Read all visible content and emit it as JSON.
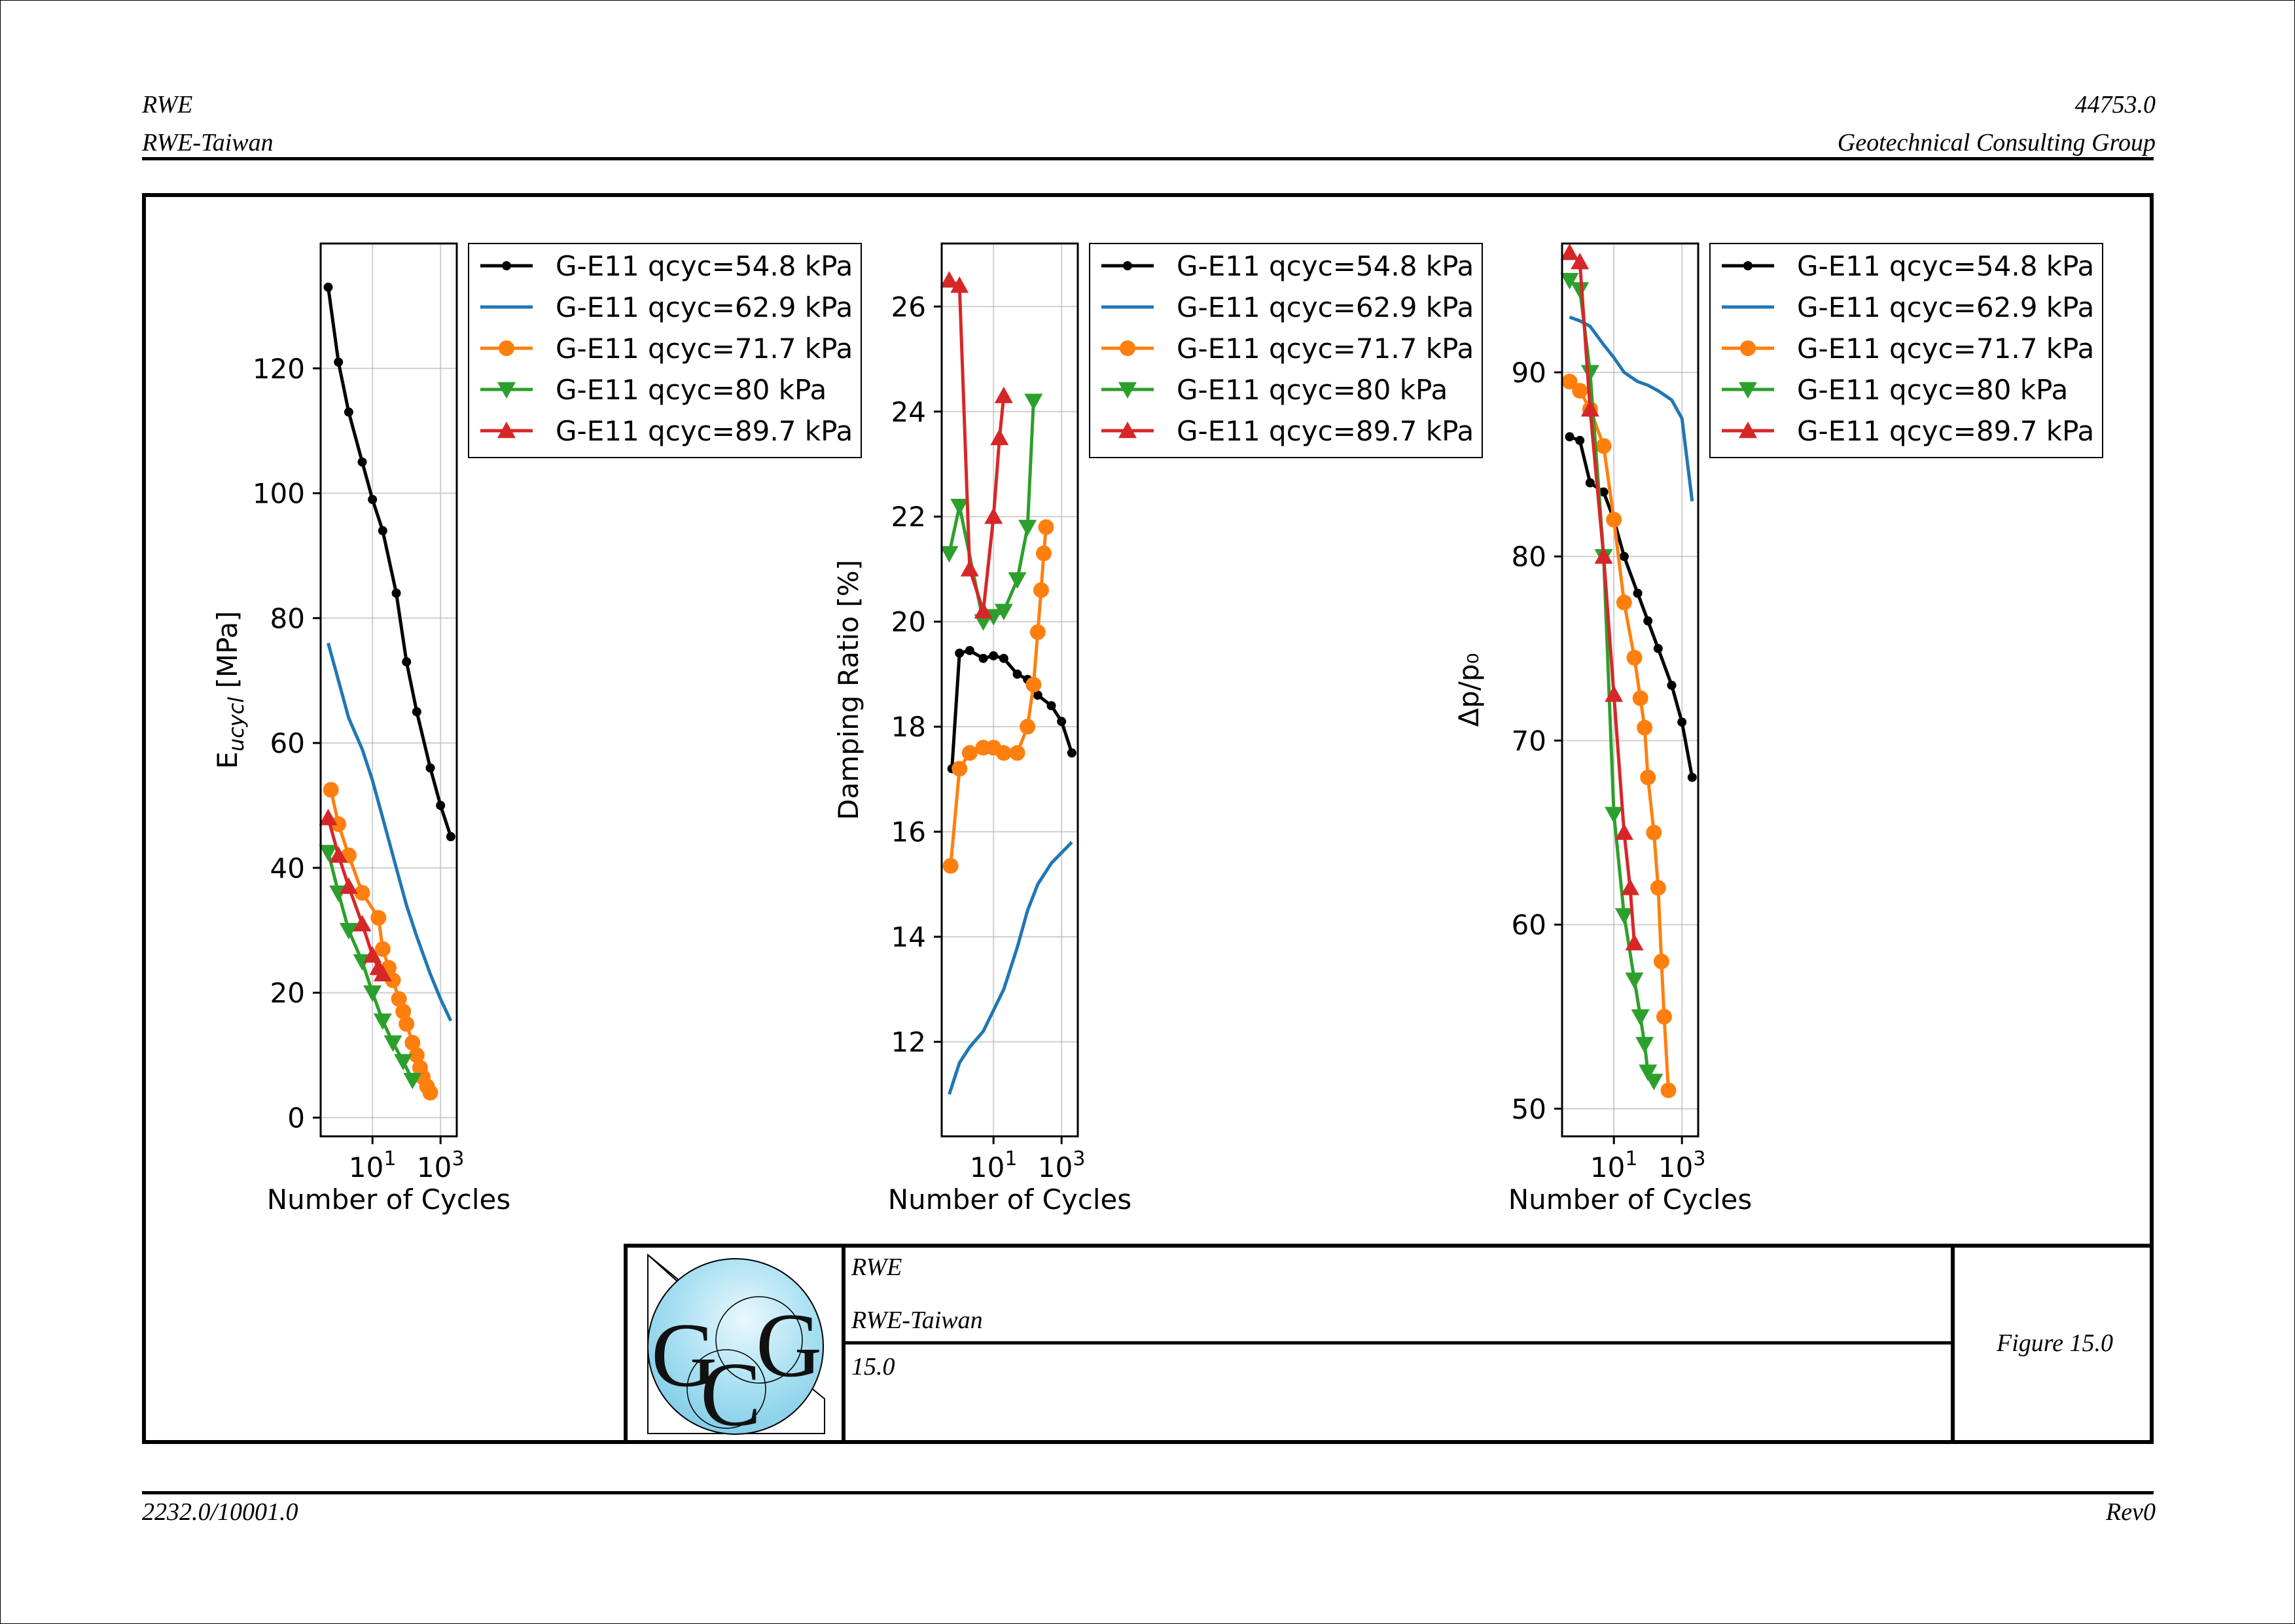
{
  "header": {
    "left_line1": "RWE",
    "left_line2": "RWE-Taiwan",
    "right_line1": "44753.0",
    "right_line2": "Geotechnical Consulting Group"
  },
  "footer": {
    "left": "2232.0/10001.0",
    "right": "Rev0"
  },
  "title_block": {
    "logo_letters": "GCG",
    "client": "RWE",
    "project": "RWE-Taiwan",
    "number": "15.0",
    "figure": "Figure 15.0"
  },
  "colors": {
    "black": "#000000",
    "blue": "#1f77b4",
    "orange": "#ff7f0e",
    "green": "#2ca02c",
    "red": "#d62728"
  },
  "legend": [
    {
      "label": "G-E11 qcyc=54.8 kPa",
      "color": "#000000",
      "marker": "point"
    },
    {
      "label": "G-E11 qcyc=62.9 kPa",
      "color": "#1f77b4",
      "marker": "none"
    },
    {
      "label": "G-E11 qcyc=71.7 kPa",
      "color": "#ff7f0e",
      "marker": "circle"
    },
    {
      "label": "G-E11 qcyc=80 kPa",
      "color": "#2ca02c",
      "marker": "triangle-down"
    },
    {
      "label": "G-E11 qcyc=89.7 kPa",
      "color": "#d62728",
      "marker": "triangle-up"
    }
  ],
  "chart_data": [
    {
      "type": "line",
      "xlabel": "Number of Cycles",
      "ylabel_main": "E",
      "ylabel_sub": "ucycl",
      "ylabel_unit": " [MPa]",
      "xscale": "log",
      "xlim": [
        0.3,
        3000
      ],
      "ylim": [
        -3,
        140
      ],
      "xticks": [
        10,
        1000
      ],
      "yticks": [
        0,
        20,
        40,
        60,
        80,
        100,
        120
      ],
      "grid": true,
      "legend_placement": "outside-right-top",
      "series": [
        {
          "name": "G-E11 qcyc=54.8 kPa",
          "color": "#000000",
          "marker": "point",
          "x": [
            0.5,
            1,
            2,
            5,
            10,
            20,
            50,
            100,
            200,
            500,
            1000,
            2000
          ],
          "y": [
            133,
            121,
            113,
            105,
            99,
            94,
            84,
            73,
            65,
            56,
            50,
            45
          ]
        },
        {
          "name": "G-E11 qcyc=62.9 kPa",
          "color": "#1f77b4",
          "marker": "none",
          "x": [
            0.5,
            1,
            2,
            5,
            10,
            20,
            50,
            100,
            200,
            500,
            1000,
            2000
          ],
          "y": [
            76,
            70,
            64,
            59,
            54,
            48,
            40,
            34,
            29,
            23,
            19,
            15.5
          ]
        },
        {
          "name": "G-E11 qcyc=71.7 kPa",
          "color": "#ff7f0e",
          "marker": "circle",
          "x": [
            0.6,
            1,
            2,
            5,
            15,
            20,
            30,
            40,
            60,
            80,
            100,
            150,
            200,
            250,
            300,
            400,
            500
          ],
          "y": [
            52.5,
            47,
            42,
            36,
            32,
            27,
            24,
            22,
            19,
            17,
            15,
            12,
            10,
            8,
            6.5,
            5,
            4
          ]
        },
        {
          "name": "G-E11 qcyc=80 kPa",
          "color": "#2ca02c",
          "marker": "triangle-down",
          "x": [
            0.5,
            1,
            2,
            5,
            10,
            20,
            40,
            80,
            150
          ],
          "y": [
            42.5,
            36,
            30,
            25,
            20,
            15.5,
            12,
            9,
            6
          ]
        },
        {
          "name": "G-E11 qcyc=89.7 kPa",
          "color": "#d62728",
          "marker": "triangle-up",
          "x": [
            0.5,
            1,
            2,
            5,
            10,
            15,
            20
          ],
          "y": [
            48,
            42,
            37,
            31,
            26,
            24,
            23
          ]
        }
      ]
    },
    {
      "type": "line",
      "xlabel": "Number of Cycles",
      "ylabel_main": "Damping Ratio [%]",
      "ylabel_sub": "",
      "ylabel_unit": "",
      "xscale": "log",
      "xlim": [
        0.3,
        3000
      ],
      "ylim": [
        10.2,
        27.2
      ],
      "xticks": [
        10,
        1000
      ],
      "yticks": [
        12,
        14,
        16,
        18,
        20,
        22,
        24,
        26
      ],
      "grid": true,
      "legend_placement": "outside-right-top",
      "series": [
        {
          "name": "G-E11 qcyc=54.8 kPa",
          "color": "#000000",
          "marker": "point",
          "x": [
            0.6,
            1,
            2,
            5,
            10,
            20,
            50,
            100,
            200,
            500,
            1000,
            2000
          ],
          "y": [
            17.2,
            19.4,
            19.45,
            19.3,
            19.35,
            19.3,
            19.0,
            18.9,
            18.6,
            18.4,
            18.1,
            17.5
          ]
        },
        {
          "name": "G-E11 qcyc=62.9 kPa",
          "color": "#1f77b4",
          "marker": "none",
          "x": [
            0.5,
            1,
            2,
            5,
            10,
            20,
            50,
            100,
            200,
            500,
            1000,
            2000
          ],
          "y": [
            11.0,
            11.6,
            11.9,
            12.2,
            12.6,
            13.0,
            13.8,
            14.5,
            15.0,
            15.4,
            15.6,
            15.8
          ]
        },
        {
          "name": "G-E11 qcyc=71.7 kPa",
          "color": "#ff7f0e",
          "marker": "circle",
          "x": [
            0.55,
            1,
            2,
            5,
            10,
            20,
            50,
            100,
            150,
            200,
            250,
            300,
            350
          ],
          "y": [
            15.35,
            17.2,
            17.5,
            17.6,
            17.6,
            17.5,
            17.5,
            18.0,
            18.8,
            19.8,
            20.6,
            21.3,
            21.8
          ]
        },
        {
          "name": "G-E11 qcyc=80 kPa",
          "color": "#2ca02c",
          "marker": "triangle-down",
          "x": [
            0.5,
            1,
            5,
            10,
            20,
            50,
            100,
            150
          ],
          "y": [
            21.3,
            22.2,
            20.0,
            20.1,
            20.2,
            20.8,
            21.8,
            24.2
          ]
        },
        {
          "name": "G-E11 qcyc=89.7 kPa",
          "color": "#d62728",
          "marker": "triangle-up",
          "x": [
            0.5,
            1,
            2,
            5,
            10,
            15,
            20
          ],
          "y": [
            26.5,
            26.4,
            21.0,
            20.2,
            22.0,
            23.5,
            24.3
          ]
        }
      ]
    },
    {
      "type": "line",
      "xlabel": "Number of Cycles",
      "ylabel_main": "Δp/p₀",
      "ylabel_sub": "",
      "ylabel_unit": "",
      "xscale": "log",
      "xlim": [
        0.3,
        3000
      ],
      "ylim": [
        48.5,
        97
      ],
      "xticks": [
        10,
        1000
      ],
      "yticks": [
        50,
        60,
        70,
        80,
        90
      ],
      "grid": true,
      "legend_placement": "outside-right-top",
      "series": [
        {
          "name": "G-E11 qcyc=54.8 kPa",
          "color": "#000000",
          "marker": "point",
          "x": [
            0.5,
            1,
            2,
            5,
            10,
            20,
            50,
            100,
            200,
            500,
            1000,
            2000
          ],
          "y": [
            86.5,
            86.3,
            84.0,
            83.5,
            82.0,
            80.0,
            78.0,
            76.5,
            75.0,
            73.0,
            71.0,
            68.0
          ]
        },
        {
          "name": "G-E11 qcyc=62.9 kPa",
          "color": "#1f77b4",
          "marker": "none",
          "x": [
            0.5,
            1,
            2,
            5,
            10,
            20,
            50,
            100,
            200,
            500,
            1000,
            2000
          ],
          "y": [
            93.0,
            92.8,
            92.5,
            91.5,
            90.8,
            90.0,
            89.5,
            89.3,
            89.0,
            88.5,
            87.5,
            83.0
          ]
        },
        {
          "name": "G-E11 qcyc=71.7 kPa",
          "color": "#ff7f0e",
          "marker": "circle",
          "x": [
            0.5,
            1,
            2,
            5,
            10,
            20,
            40,
            60,
            80,
            100,
            150,
            200,
            250,
            300,
            400
          ],
          "y": [
            89.5,
            89.0,
            88.0,
            86.0,
            82.0,
            77.5,
            74.5,
            72.3,
            70.7,
            68.0,
            65.0,
            62.0,
            58.0,
            55.0,
            51.0
          ]
        },
        {
          "name": "G-E11 qcyc=80 kPa",
          "color": "#2ca02c",
          "marker": "triangle-down",
          "x": [
            0.5,
            1,
            2,
            5,
            10,
            20,
            40,
            60,
            80,
            100,
            150
          ],
          "y": [
            95.0,
            94.5,
            90.0,
            80.0,
            66.0,
            60.5,
            57.0,
            55.0,
            53.5,
            52.0,
            51.5
          ]
        },
        {
          "name": "G-E11 qcyc=89.7 kPa",
          "color": "#d62728",
          "marker": "triangle-up",
          "x": [
            0.5,
            1,
            2,
            5,
            10,
            20,
            30,
            40
          ],
          "y": [
            96.5,
            96.0,
            88.0,
            80.0,
            72.5,
            65.0,
            62.0,
            59.0
          ]
        }
      ]
    }
  ]
}
